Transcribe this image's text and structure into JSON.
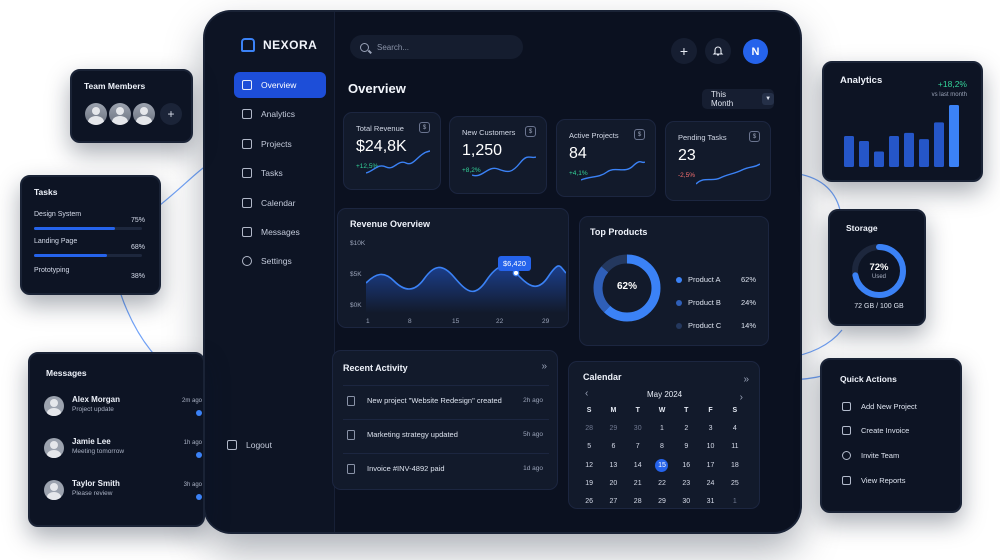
{
  "brand": "NEXORA",
  "search": {
    "placeholder": "Search..."
  },
  "sidebar": {
    "items": [
      {
        "label": "Overview",
        "icon": "home-icon",
        "active": true
      },
      {
        "label": "Analytics",
        "icon": "analytics-icon"
      },
      {
        "label": "Projects",
        "icon": "projects-icon"
      },
      {
        "label": "Tasks",
        "icon": "tasks-icon"
      },
      {
        "label": "Calendar",
        "icon": "calendar-icon"
      },
      {
        "label": "Messages",
        "icon": "messages-icon"
      },
      {
        "label": "Settings",
        "icon": "gear-icon"
      }
    ],
    "logout": "Logout"
  },
  "header": {
    "add_icon": "+",
    "avatar_initial": "N",
    "title": "Overview",
    "period": "This Month"
  },
  "kpis": [
    {
      "label": "Total Revenue",
      "value": "$24,8K",
      "change": "+12,5%",
      "trend": "up"
    },
    {
      "label": "New Customers",
      "value": "1,250",
      "change": "+8,2%",
      "trend": "up"
    },
    {
      "label": "Active Projects",
      "value": "84",
      "change": "+4,1%",
      "trend": "up"
    },
    {
      "label": "Pending Tasks",
      "value": "23",
      "change": "-2,5%",
      "trend": "down"
    }
  ],
  "revenue_overview": {
    "title": "Revenue Overview",
    "tooltip": "$6,420",
    "y_ticks": [
      "$10K",
      "$5K",
      "$0K"
    ],
    "x_ticks": [
      "1",
      "8",
      "15",
      "22",
      "29"
    ]
  },
  "top_products": {
    "title": "Top Products",
    "center_label": "62%",
    "items": [
      {
        "name": "Product A",
        "value": "62%",
        "percent": 62,
        "color": "#3b82f6"
      },
      {
        "name": "Product B",
        "value": "24%",
        "percent": 24,
        "color": "#2f5fb8"
      },
      {
        "name": "Product C",
        "value": "14%",
        "percent": 14,
        "color": "#24385e"
      }
    ]
  },
  "recent_activity": {
    "title": "Recent Activity",
    "more_icon": "»",
    "items": [
      {
        "text": "New project \"Website Redesign\" created",
        "time": "2h ago"
      },
      {
        "text": "Marketing strategy updated",
        "time": "5h ago"
      },
      {
        "text": "Invoice #INV-4892 paid",
        "time": "1d ago"
      }
    ]
  },
  "calendar": {
    "title": "Calendar",
    "month": "May 2024",
    "prev_icon": "‹",
    "next_icon": "›",
    "more_icon": "»",
    "weekdays": [
      "S",
      "M",
      "T",
      "W",
      "T",
      "F",
      "S"
    ],
    "days": [
      "28",
      "29",
      "30",
      "1",
      "2",
      "3",
      "4",
      "5",
      "6",
      "7",
      "8",
      "9",
      "10",
      "11",
      "12",
      "13",
      "14",
      "15",
      "16",
      "17",
      "18",
      "19",
      "20",
      "21",
      "22",
      "23",
      "24",
      "25",
      "26",
      "27",
      "28",
      "29",
      "30",
      "31",
      "1"
    ],
    "selected": "15"
  },
  "team_members": {
    "title": "Team Members",
    "add_icon": "+"
  },
  "tasks_panel": {
    "title": "Tasks",
    "items": [
      {
        "name": "Design System",
        "pct": "75%",
        "progress": 0.75
      },
      {
        "name": "Landing Page",
        "pct": "68%",
        "progress": 0.68
      },
      {
        "name": "Prototyping",
        "pct": "38%",
        "progress": 0.38
      }
    ]
  },
  "messages_panel": {
    "title": "Messages",
    "items": [
      {
        "name": "Alex Morgan",
        "text": "Project update",
        "time": "2m ago"
      },
      {
        "name": "Jamie Lee",
        "text": "Meeting tomorrow",
        "time": "1h ago"
      },
      {
        "name": "Taylor Smith",
        "text": "Please review",
        "time": "3h ago"
      }
    ]
  },
  "analytics_panel": {
    "title": "Analytics",
    "change": "+18,2%",
    "sub": "vs last month",
    "bars": [
      0.5,
      0.42,
      0.25,
      0.5,
      0.55,
      0.45,
      0.72,
      1.0
    ]
  },
  "storage_panel": {
    "title": "Storage",
    "percent": "72%",
    "percent_value": 72,
    "used_label": "Used",
    "usage": "72 GB / 100 GB"
  },
  "quick_actions": {
    "title": "Quick Actions",
    "items": [
      {
        "label": "Add New Project",
        "icon": "folder-plus-icon"
      },
      {
        "label": "Create Invoice",
        "icon": "invoice-icon"
      },
      {
        "label": "Invite Team",
        "icon": "team-icon"
      },
      {
        "label": "View Reports",
        "icon": "report-icon"
      }
    ]
  },
  "colors": {
    "accent": "#2563eb",
    "background": "#0b1120",
    "card": "#121a2b",
    "positive": "#34d399",
    "negative": "#f87171"
  }
}
